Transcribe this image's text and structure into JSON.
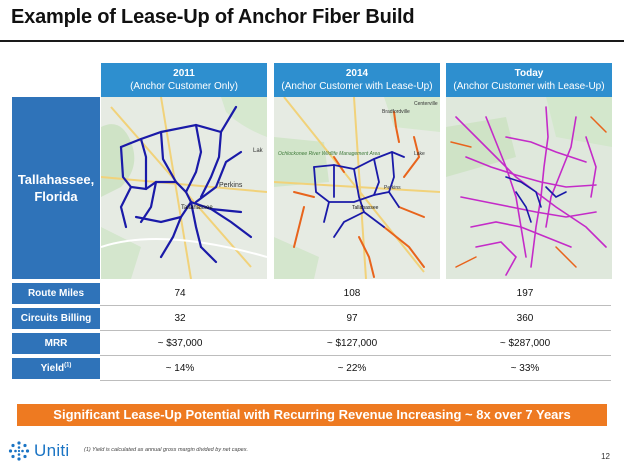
{
  "header": {
    "title": "Example of Lease-Up of Anchor Fiber Build"
  },
  "city_label": {
    "line1": "Tallahassee,",
    "line2": "Florida"
  },
  "columns": [
    {
      "year": "2011",
      "subtitle": "(Anchor Customer Only)"
    },
    {
      "year": "2014",
      "subtitle": "(Anchor Customer with Lease-Up)"
    },
    {
      "year": "Today",
      "subtitle": "(Anchor Customer with Lease-Up)"
    }
  ],
  "maps": [
    {
      "place_labels": [
        "Perkins",
        "Tallahassee",
        "Lak"
      ]
    },
    {
      "place_labels": [
        "Centerville",
        "Bradfordville",
        "Ochlockonee River Wildlife Management Area",
        "Lake",
        "Perkins",
        "Tallahassee"
      ]
    },
    {
      "place_labels": []
    }
  ],
  "table": {
    "rows": [
      {
        "label": "Route Miles",
        "values": [
          "74",
          "108",
          "197"
        ]
      },
      {
        "label": "Circuits Billing",
        "values": [
          "32",
          "97",
          "360"
        ]
      },
      {
        "label": "MRR",
        "values": [
          "~ $37,000",
          "~ $127,000",
          "~ $287,000"
        ]
      },
      {
        "label": "Yield",
        "superscript": "(1)",
        "values": [
          "~ 14%",
          "~ 22%",
          "~ 33%"
        ]
      }
    ]
  },
  "banner": {
    "text": "Significant Lease-Up Potential with Recurring Revenue Increasing ~ 8x over 7 Years"
  },
  "footer": {
    "logo_text": "Uniti",
    "footnote": "(1)  Yield is calculated as annual gross margin divided by net capex.",
    "page_number": "12"
  },
  "colors": {
    "header_blue": "#2e8fcf",
    "label_blue": "#2f73b9",
    "banner_orange": "#ee7a21",
    "route_anchor": "#1a1aa8",
    "route_leaseup": "#e8641c",
    "route_today": "#c42bc8"
  }
}
